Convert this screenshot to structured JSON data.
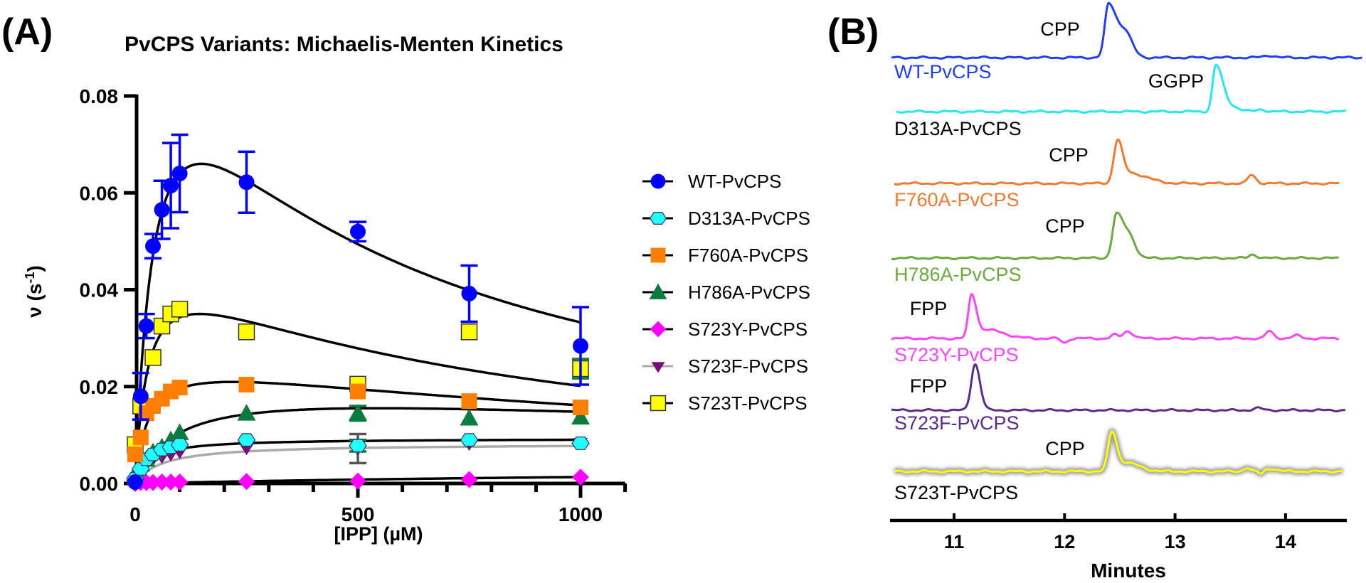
{
  "panel_a_label": "(A)",
  "panel_b_label": "(B)",
  "chart_data": [
    {
      "type": "scatter",
      "title": "PvCPS Variants: Michaelis-Menten Kinetics",
      "xlabel": "[IPP] (µM)",
      "ylabel_main": "ν (s",
      "ylabel_sup": "-1",
      "ylabel_end": ")",
      "xlim": [
        0,
        1100
      ],
      "ylim": [
        0,
        0.08
      ],
      "xticks": [
        "0",
        "500",
        "1000"
      ],
      "xtick_values": [
        0,
        500,
        1000
      ],
      "xminor_step": 100,
      "yticks": [
        "0.00",
        "0.02",
        "0.04",
        "0.06",
        "0.08"
      ],
      "ytick_values": [
        0,
        0.02,
        0.04,
        0.06,
        0.08
      ],
      "legend": "right",
      "series": [
        {
          "name": "WT-PvCPS",
          "color": "#0000ff",
          "marker": "circle",
          "line": "#000000",
          "x": [
            0,
            12.5,
            25,
            40,
            60,
            80,
            100,
            250,
            500,
            750,
            1000
          ],
          "y": [
            0.0003,
            0.018,
            0.0325,
            0.049,
            0.0565,
            0.0615,
            0.064,
            0.0622,
            0.052,
            0.0392,
            0.0284
          ],
          "err": [
            0,
            0.0048,
            0.0025,
            0.0025,
            0.006,
            0.0088,
            0.008,
            0.0063,
            0.002,
            0.0058,
            0.008
          ],
          "fit": {
            "model": "substrate_inhibition",
            "Vmax": 0.1105,
            "Km": 50,
            "Ki": 440
          }
        },
        {
          "name": "D313A-PvCPS",
          "color": "#22ffff",
          "marker": "hexagon",
          "line": "#000000",
          "x": [
            0,
            12.5,
            25,
            40,
            60,
            80,
            100,
            250,
            500,
            750,
            1000
          ],
          "y": [
            0.001,
            0.003,
            0.005,
            0.006,
            0.007,
            0.0075,
            0.008,
            0.009,
            0.0078,
            0.009,
            0.0083
          ],
          "err": [
            0,
            0,
            0,
            0,
            0,
            0,
            0,
            0,
            0.0012,
            0,
            0
          ],
          "fit": {
            "model": "michaelis_menten",
            "Vmax": 0.0093,
            "Km": 30
          }
        },
        {
          "name": "F760A-PvCPS",
          "color": "#ff7f00",
          "marker": "square",
          "line": "#000000",
          "x": [
            0,
            12.5,
            25,
            40,
            60,
            80,
            100,
            250,
            500,
            750,
            1000
          ],
          "y": [
            0.006,
            0.0095,
            0.0145,
            0.016,
            0.0175,
            0.019,
            0.0198,
            0.0204,
            0.019,
            0.017,
            0.0157
          ],
          "err": [
            0,
            0,
            0,
            0,
            0,
            0,
            0,
            0,
            0,
            0,
            0
          ],
          "fit": {
            "model": "substrate_inhibition",
            "Vmax": 0.0267,
            "Km": 30,
            "Ki": 1600
          }
        },
        {
          "name": "H786A-PvCPS",
          "color": "#0a7d3e",
          "marker": "triangle",
          "line": "#000000",
          "x": [
            0,
            12.5,
            25,
            40,
            60,
            80,
            100,
            250,
            500,
            750,
            1000
          ],
          "y": [
            0.002,
            0.004,
            0.005,
            0.0065,
            0.0075,
            0.009,
            0.0105,
            0.0145,
            0.0145,
            0.0135,
            0.0137
          ],
          "err": [
            0,
            0,
            0,
            0,
            0,
            0,
            0,
            0,
            0.0015,
            0,
            0
          ],
          "fit": {
            "model": "substrate_inhibition",
            "Vmax": 0.0212,
            "Km": 100,
            "Ki": 3000
          }
        },
        {
          "name": "S723Y-PvCPS",
          "color": "#ff00ff",
          "marker": "diamond",
          "line": "#000000",
          "x": [
            0,
            12.5,
            25,
            40,
            60,
            80,
            100,
            250,
            500,
            750,
            1000
          ],
          "y": [
            0,
            0.0002,
            0.0002,
            0.0002,
            0.0003,
            0.0003,
            0.0003,
            0.0004,
            0.0005,
            0.0008,
            0.0013
          ],
          "err": [
            0,
            0,
            0,
            0,
            0,
            0,
            0,
            0,
            0,
            0,
            0
          ],
          "fit": {
            "model": "michaelis_menten",
            "Vmax": 0.004,
            "Km": 2000
          }
        },
        {
          "name": "S723F-PvCPS",
          "color": "#7b0d7b",
          "marker": "triangle-down",
          "line": "#aaaaaa",
          "x": [
            0,
            12.5,
            25,
            40,
            60,
            80,
            100,
            250,
            500,
            750,
            1000
          ],
          "y": [
            0.0005,
            0.002,
            0.004,
            0.005,
            0.0055,
            0.006,
            0.0065,
            0.0073,
            0.0072,
            0.0082,
            0.0085
          ],
          "err": [
            0,
            0,
            0,
            0,
            0,
            0,
            0,
            0,
            0.003,
            0,
            0
          ],
          "fit": {
            "model": "michaelis_menten",
            "Vmax": 0.0082,
            "Km": 60
          }
        },
        {
          "name": "S723T-PvCPS",
          "color": "#ffff00",
          "marker": "square-outlined",
          "line": "#000000",
          "x": [
            0,
            12.5,
            40,
            60,
            80,
            100,
            250,
            500,
            750,
            1000
          ],
          "y": [
            0.008,
            0.016,
            0.026,
            0.0325,
            0.035,
            0.036,
            0.0313,
            0.0205,
            0.0313,
            0.0237
          ],
          "err": [
            0,
            0,
            0,
            0,
            0,
            0,
            0,
            0,
            0,
            0.002
          ],
          "fit": {
            "model": "substrate_inhibition",
            "Vmax": 0.0495,
            "Km": 30,
            "Ki": 700
          }
        }
      ]
    },
    {
      "type": "line",
      "xlabel": "Minutes",
      "xlim": [
        10.42,
        14.56
      ],
      "xticks": [
        "11",
        "12",
        "13",
        "14"
      ],
      "xtick_values": [
        11,
        12,
        13,
        14
      ],
      "intensity_units": "relative",
      "traces": [
        {
          "name": "WT-PvCPS",
          "color": "#1f3fff",
          "label_color": "#1f3fff",
          "peak_label": "CPP",
          "peaks": [
            [
              12.4,
              76,
              0.035,
              0.08
            ],
            [
              12.56,
              28,
              0.05,
              0.06
            ],
            [
              13.85,
              3,
              0.05,
              0.05
            ]
          ]
        },
        {
          "name": "D313A-PvCPS",
          "color": "#22e8f2",
          "label_color": "#000000",
          "peak_label": "GGPP",
          "peaks": [
            [
              13.37,
              65,
              0.03,
              0.06
            ],
            [
              13.5,
              7,
              0.06,
              0.08
            ],
            [
              13.78,
              3,
              0.04,
              0.04
            ]
          ]
        },
        {
          "name": "F760A-PvCPS",
          "color": "#f07a30",
          "label_color": "#f07a30",
          "peak_label": "CPP",
          "peaks": [
            [
              12.48,
              60,
              0.035,
              0.045
            ],
            [
              12.6,
              14,
              0.06,
              0.15
            ],
            [
              13.69,
              12,
              0.03,
              0.04
            ]
          ]
        },
        {
          "name": "H786A-PvCPS",
          "color": "#6aaa40",
          "label_color": "#6aaa40",
          "peak_label": "CPP",
          "peaks": [
            [
              12.47,
              62,
              0.035,
              0.07
            ],
            [
              12.6,
              22,
              0.05,
              0.05
            ],
            [
              13.7,
              5,
              0.03,
              0.04
            ]
          ]
        },
        {
          "name": "S723Y-PvCPS",
          "color": "#ff44ff",
          "label_color": "#ff44ff",
          "peak_label": "FPP",
          "peaks": [
            [
              11.16,
              62,
              0.03,
              0.045
            ],
            [
              11.3,
              12,
              0.05,
              0.15
            ],
            [
              12.0,
              -6,
              0.03,
              0.03
            ],
            [
              12.45,
              5,
              0.03,
              0.03
            ],
            [
              12.57,
              10,
              0.04,
              0.05
            ],
            [
              13.85,
              10,
              0.03,
              0.04
            ],
            [
              14.1,
              4,
              0.04,
              0.04
            ]
          ]
        },
        {
          "name": "S723F-PvCPS",
          "color": "#5b2a8f",
          "label_color": "#5b2a8f",
          "peak_label": "FPP",
          "peaks": [
            [
              11.19,
              65,
              0.035,
              0.045
            ],
            [
              13.75,
              3,
              0.04,
              0.04
            ]
          ]
        },
        {
          "name": "S723T-PvCPS",
          "color": "#ffff00",
          "label_color": "#000000",
          "peak_label": "CPP",
          "peaks": [
            [
              12.43,
              56,
              0.035,
              0.045
            ],
            [
              12.56,
              12,
              0.05,
              0.12
            ],
            [
              13.65,
              5,
              0.03,
              0.03
            ],
            [
              13.78,
              -4,
              0.02,
              0.02
            ],
            [
              13.86,
              4,
              0.04,
              0.06
            ]
          ]
        }
      ]
    }
  ]
}
